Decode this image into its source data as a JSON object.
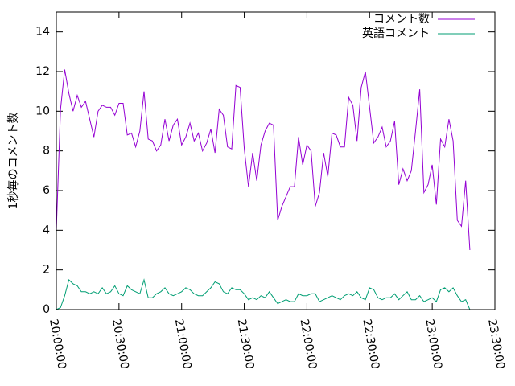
{
  "chart_data": {
    "type": "line",
    "ylabel": "1秒毎のコメント数",
    "xlim": [
      "20:00:00",
      "23:30:00"
    ],
    "ylim": [
      0,
      15
    ],
    "x_ticks": [
      "20:00:00",
      "20:30:00",
      "21:00:00",
      "21:30:00",
      "22:00:00",
      "22:30:00",
      "23:00:00",
      "23:30:00"
    ],
    "y_ticks": [
      "0",
      "2",
      "4",
      "6",
      "8",
      "10",
      "12",
      "14"
    ],
    "legend_position": "top-right",
    "grid": false,
    "x_start": "20:00:00",
    "x_step_minutes": 2,
    "series": [
      {
        "name": "コメント数",
        "color": "#9400d3",
        "values": [
          4.0,
          10.1,
          12.1,
          10.9,
          10.0,
          10.8,
          10.2,
          10.5,
          9.6,
          8.7,
          10.0,
          10.3,
          10.2,
          10.2,
          9.8,
          10.4,
          10.4,
          8.8,
          8.9,
          8.2,
          9.0,
          11.0,
          8.6,
          8.5,
          8.0,
          8.3,
          9.6,
          8.5,
          9.3,
          9.6,
          8.3,
          8.7,
          9.4,
          8.5,
          8.9,
          8.0,
          8.4,
          9.1,
          7.9,
          10.1,
          9.8,
          8.2,
          8.1,
          11.3,
          11.2,
          8.1,
          6.2,
          7.9,
          6.5,
          8.3,
          9.0,
          9.4,
          9.3,
          4.5,
          5.2,
          5.7,
          6.2,
          6.2,
          8.7,
          7.3,
          8.3,
          8.0,
          5.2,
          5.9,
          7.9,
          6.7,
          8.9,
          8.8,
          8.2,
          8.2,
          10.7,
          10.3,
          8.5,
          11.2,
          12.0,
          10.2,
          8.4,
          8.7,
          9.2,
          8.2,
          8.5,
          9.5,
          6.3,
          7.1,
          6.5,
          7.0,
          9.0,
          11.1,
          5.9,
          6.3,
          7.3,
          5.3,
          8.6,
          8.2,
          9.6,
          8.5,
          4.5,
          4.2,
          6.5,
          3.0
        ]
      },
      {
        "name": "英語コメント",
        "color": "#009e73",
        "values": [
          0.0,
          0.1,
          0.7,
          1.5,
          1.3,
          1.2,
          0.9,
          0.9,
          0.8,
          0.9,
          0.8,
          1.1,
          0.8,
          0.9,
          1.2,
          0.8,
          0.7,
          1.2,
          1.0,
          0.9,
          0.8,
          1.5,
          0.6,
          0.6,
          0.8,
          0.9,
          1.1,
          0.8,
          0.7,
          0.8,
          0.9,
          1.1,
          1.0,
          0.8,
          0.7,
          0.7,
          0.9,
          1.1,
          1.4,
          1.3,
          0.9,
          0.8,
          1.1,
          1.0,
          1.0,
          0.8,
          0.5,
          0.6,
          0.5,
          0.7,
          0.6,
          0.9,
          0.6,
          0.3,
          0.4,
          0.5,
          0.4,
          0.4,
          0.8,
          0.7,
          0.7,
          0.8,
          0.8,
          0.4,
          0.5,
          0.6,
          0.7,
          0.6,
          0.5,
          0.7,
          0.8,
          0.7,
          0.9,
          0.6,
          0.5,
          1.1,
          1.0,
          0.6,
          0.5,
          0.6,
          0.6,
          0.8,
          0.5,
          0.7,
          0.9,
          0.5,
          0.5,
          0.7,
          0.4,
          0.5,
          0.6,
          0.4,
          1.0,
          1.1,
          0.9,
          1.1,
          0.7,
          0.4,
          0.5,
          0.0
        ]
      }
    ]
  }
}
